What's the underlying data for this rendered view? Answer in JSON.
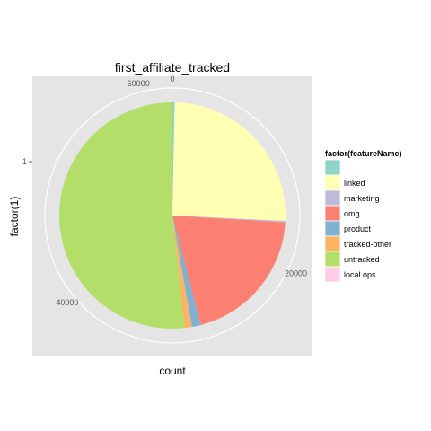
{
  "chart_data": {
    "type": "pie",
    "title": "first_affiliate_tracked",
    "xlabel": "count",
    "ylabel": "factor(1)",
    "y_tick_labels": [
      "1"
    ],
    "radial_tick_labels": [
      "0",
      "20000",
      "40000",
      "60000"
    ],
    "radial_ticks": [
      0,
      20000,
      40000,
      60000
    ],
    "total": 62500,
    "legend": {
      "title": "factor(featureName)",
      "position": "right",
      "entries": [
        {
          "label": "",
          "color": "#8DD3C7"
        },
        {
          "label": "linked",
          "color": "#FFFFB3"
        },
        {
          "label": "marketing",
          "color": "#BEBADA"
        },
        {
          "label": "omg",
          "color": "#FB8072"
        },
        {
          "label": "product",
          "color": "#80B1D3"
        },
        {
          "label": "tracked-other",
          "color": "#FDB462"
        },
        {
          "label": "untracked",
          "color": "#B3DE69"
        },
        {
          "label": "local ops",
          "color": "#FCCDE5"
        }
      ]
    },
    "slices": [
      {
        "label": "",
        "value": 200,
        "color": "#8DD3C7"
      },
      {
        "label": "linked",
        "value": 15900,
        "color": "#FFFFB3"
      },
      {
        "label": "marketing",
        "value": 130,
        "color": "#BEBADA"
      },
      {
        "label": "omg",
        "value": 12500,
        "color": "#FB8072"
      },
      {
        "label": "product",
        "value": 800,
        "color": "#80B1D3"
      },
      {
        "label": "tracked-other",
        "value": 650,
        "color": "#FDB462"
      },
      {
        "label": "untracked",
        "value": 32300,
        "color": "#B3DE69"
      },
      {
        "label": "local ops",
        "value": 20,
        "color": "#FCCDE5"
      }
    ],
    "grid": true,
    "panel_background": "#E5E5E5"
  }
}
